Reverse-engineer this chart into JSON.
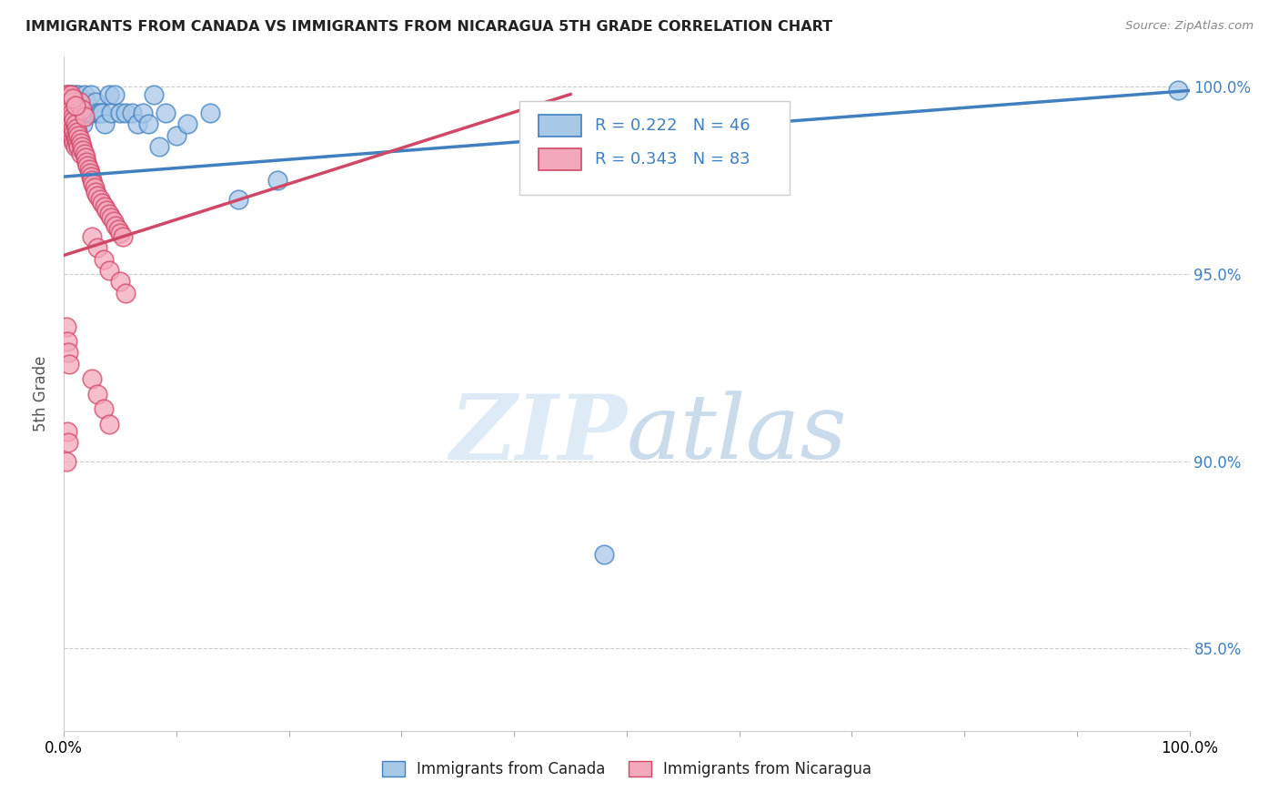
{
  "title": "IMMIGRANTS FROM CANADA VS IMMIGRANTS FROM NICARAGUA 5TH GRADE CORRELATION CHART",
  "source": "Source: ZipAtlas.com",
  "ylabel": "5th Grade",
  "xlim": [
    0.0,
    1.0
  ],
  "ylim": [
    0.828,
    1.008
  ],
  "yticks": [
    0.85,
    0.9,
    0.95,
    1.0
  ],
  "ytick_labels": [
    "85.0%",
    "90.0%",
    "95.0%",
    "100.0%"
  ],
  "xticks": [
    0.0,
    0.1,
    0.2,
    0.3,
    0.4,
    0.5,
    0.6,
    0.7,
    0.8,
    0.9,
    1.0
  ],
  "xtick_labels": [
    "0.0%",
    "",
    "",
    "",
    "",
    "",
    "",
    "",
    "",
    "",
    "100.0%"
  ],
  "legend_label_blue": "Immigrants from Canada",
  "legend_label_pink": "Immigrants from Nicaragua",
  "blue_color": "#a8c8e8",
  "pink_color": "#f4a8bc",
  "line_blue": "#4080c0",
  "line_pink": "#d04868",
  "blue_scatter": [
    [
      0.003,
      0.997
    ],
    [
      0.004,
      0.993
    ],
    [
      0.005,
      0.998
    ],
    [
      0.006,
      0.996
    ],
    [
      0.007,
      0.998
    ],
    [
      0.007,
      0.994
    ],
    [
      0.008,
      0.993
    ],
    [
      0.009,
      0.996
    ],
    [
      0.01,
      0.998
    ],
    [
      0.011,
      0.993
    ],
    [
      0.012,
      0.996
    ],
    [
      0.013,
      0.998
    ],
    [
      0.014,
      0.993
    ],
    [
      0.015,
      0.996
    ],
    [
      0.016,
      0.994
    ],
    [
      0.017,
      0.99
    ],
    [
      0.018,
      0.998
    ],
    [
      0.019,
      0.993
    ],
    [
      0.02,
      0.996
    ],
    [
      0.022,
      0.993
    ],
    [
      0.024,
      0.998
    ],
    [
      0.026,
      0.993
    ],
    [
      0.028,
      0.996
    ],
    [
      0.03,
      0.993
    ],
    [
      0.032,
      0.993
    ],
    [
      0.034,
      0.993
    ],
    [
      0.036,
      0.99
    ],
    [
      0.04,
      0.998
    ],
    [
      0.042,
      0.993
    ],
    [
      0.045,
      0.998
    ],
    [
      0.05,
      0.993
    ],
    [
      0.055,
      0.993
    ],
    [
      0.06,
      0.993
    ],
    [
      0.065,
      0.99
    ],
    [
      0.07,
      0.993
    ],
    [
      0.075,
      0.99
    ],
    [
      0.08,
      0.998
    ],
    [
      0.085,
      0.984
    ],
    [
      0.09,
      0.993
    ],
    [
      0.1,
      0.987
    ],
    [
      0.11,
      0.99
    ],
    [
      0.13,
      0.993
    ],
    [
      0.155,
      0.97
    ],
    [
      0.19,
      0.975
    ],
    [
      0.48,
      0.875
    ],
    [
      0.99,
      0.999
    ]
  ],
  "pink_scatter": [
    [
      0.002,
      0.998
    ],
    [
      0.002,
      0.996
    ],
    [
      0.003,
      0.998
    ],
    [
      0.003,
      0.996
    ],
    [
      0.003,
      0.993
    ],
    [
      0.004,
      0.997
    ],
    [
      0.004,
      0.994
    ],
    [
      0.004,
      0.991
    ],
    [
      0.005,
      0.996
    ],
    [
      0.005,
      0.993
    ],
    [
      0.005,
      0.99
    ],
    [
      0.006,
      0.994
    ],
    [
      0.006,
      0.991
    ],
    [
      0.006,
      0.988
    ],
    [
      0.007,
      0.993
    ],
    [
      0.007,
      0.99
    ],
    [
      0.007,
      0.987
    ],
    [
      0.008,
      0.992
    ],
    [
      0.008,
      0.989
    ],
    [
      0.008,
      0.986
    ],
    [
      0.009,
      0.991
    ],
    [
      0.009,
      0.988
    ],
    [
      0.009,
      0.985
    ],
    [
      0.01,
      0.99
    ],
    [
      0.01,
      0.987
    ],
    [
      0.01,
      0.984
    ],
    [
      0.011,
      0.989
    ],
    [
      0.011,
      0.986
    ],
    [
      0.012,
      0.988
    ],
    [
      0.012,
      0.985
    ],
    [
      0.013,
      0.987
    ],
    [
      0.013,
      0.984
    ],
    [
      0.014,
      0.986
    ],
    [
      0.015,
      0.985
    ],
    [
      0.015,
      0.982
    ],
    [
      0.016,
      0.984
    ],
    [
      0.017,
      0.983
    ],
    [
      0.018,
      0.982
    ],
    [
      0.019,
      0.981
    ],
    [
      0.02,
      0.98
    ],
    [
      0.021,
      0.979
    ],
    [
      0.022,
      0.978
    ],
    [
      0.023,
      0.977
    ],
    [
      0.024,
      0.976
    ],
    [
      0.025,
      0.975
    ],
    [
      0.026,
      0.974
    ],
    [
      0.027,
      0.973
    ],
    [
      0.028,
      0.972
    ],
    [
      0.03,
      0.971
    ],
    [
      0.032,
      0.97
    ],
    [
      0.034,
      0.969
    ],
    [
      0.036,
      0.968
    ],
    [
      0.038,
      0.967
    ],
    [
      0.04,
      0.966
    ],
    [
      0.042,
      0.965
    ],
    [
      0.044,
      0.964
    ],
    [
      0.046,
      0.963
    ],
    [
      0.048,
      0.962
    ],
    [
      0.05,
      0.961
    ],
    [
      0.052,
      0.96
    ],
    [
      0.014,
      0.996
    ],
    [
      0.016,
      0.994
    ],
    [
      0.018,
      0.992
    ],
    [
      0.006,
      0.998
    ],
    [
      0.008,
      0.997
    ],
    [
      0.01,
      0.995
    ],
    [
      0.002,
      0.936
    ],
    [
      0.003,
      0.932
    ],
    [
      0.004,
      0.929
    ],
    [
      0.005,
      0.926
    ],
    [
      0.025,
      0.922
    ],
    [
      0.03,
      0.918
    ],
    [
      0.035,
      0.914
    ],
    [
      0.04,
      0.91
    ],
    [
      0.025,
      0.96
    ],
    [
      0.03,
      0.957
    ],
    [
      0.035,
      0.954
    ],
    [
      0.04,
      0.951
    ],
    [
      0.003,
      0.908
    ],
    [
      0.004,
      0.905
    ],
    [
      0.05,
      0.948
    ],
    [
      0.055,
      0.945
    ],
    [
      0.002,
      0.9
    ]
  ],
  "blue_trendline_x": [
    0.0,
    1.0
  ],
  "blue_trendline_y": [
    0.976,
    0.999
  ],
  "pink_trendline_x": [
    0.0,
    0.45
  ],
  "pink_trendline_y": [
    0.955,
    0.998
  ]
}
